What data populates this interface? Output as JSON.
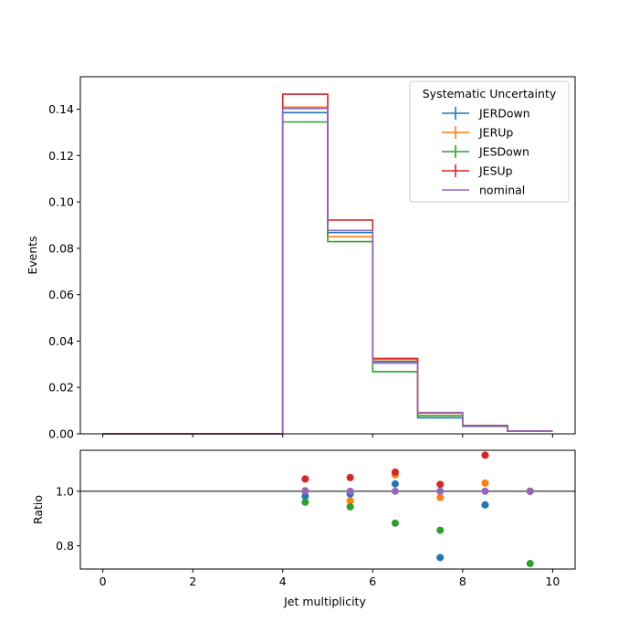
{
  "chart_data": [
    {
      "type": "step-histogram",
      "xlabel": "",
      "ylabel": "Events",
      "xlim": [
        -0.5,
        10.5
      ],
      "ylim": [
        0,
        0.154
      ],
      "xticks": [
        0,
        2,
        4,
        6,
        8,
        10
      ],
      "yticks": [
        0.0,
        0.02,
        0.04,
        0.06,
        0.08,
        0.1,
        0.12,
        0.14
      ],
      "ytick_labels": [
        "0.00",
        "0.02",
        "0.04",
        "0.06",
        "0.08",
        "0.10",
        "0.12",
        "0.14"
      ],
      "bin_edges": [
        0,
        1,
        2,
        3,
        4,
        5,
        6,
        7,
        8,
        9,
        10
      ],
      "legend": {
        "title": "Systematic Uncertainty",
        "loc": "upper right"
      },
      "grid": false,
      "series": [
        {
          "name": "JERDown",
          "color": "#1f77b4",
          "values": [
            0,
            0,
            0,
            0,
            0.1385,
            0.0868,
            0.0312,
            0.0069,
            0.0032,
            0.0012
          ]
        },
        {
          "name": "JERUp",
          "color": "#ff7f0e",
          "values": [
            0,
            0,
            0,
            0,
            0.1409,
            0.085,
            0.032,
            0.0089,
            0.0035,
            0.0012
          ]
        },
        {
          "name": "JESDown",
          "color": "#2ca02c",
          "values": [
            0,
            0,
            0,
            0,
            0.1345,
            0.0829,
            0.0268,
            0.0078,
            0.0033,
            0.0012
          ]
        },
        {
          "name": "JESUp",
          "color": "#d62728",
          "values": [
            0,
            0,
            0,
            0,
            0.1465,
            0.0922,
            0.0325,
            0.0092,
            0.0036,
            0.0012
          ]
        },
        {
          "name": "nominal",
          "color": "#9467bd",
          "values": [
            0,
            0,
            0,
            0,
            0.1403,
            0.0877,
            0.0305,
            0.0091,
            0.0034,
            0.0012
          ]
        }
      ]
    },
    {
      "type": "scatter",
      "xlabel": "Jet multiplicity",
      "ylabel": "Ratio",
      "xlim": [
        -0.5,
        10.5
      ],
      "ylim": [
        0.715,
        1.15
      ],
      "xticks": [
        0,
        2,
        4,
        6,
        8,
        10
      ],
      "yticks": [
        0.8,
        1.0
      ],
      "ytick_labels": [
        "0.8",
        "1.0"
      ],
      "reference_line": 1.0,
      "x": [
        4.5,
        5.5,
        6.5,
        7.5,
        8.5,
        9.5
      ],
      "series": [
        {
          "name": "JERDown",
          "color": "#1f77b4",
          "values": [
            0.982,
            0.99,
            1.027,
            0.757,
            0.95,
            1.0
          ]
        },
        {
          "name": "JERUp",
          "color": "#ff7f0e",
          "values": [
            1.002,
            0.965,
            1.06,
            0.977,
            1.03,
            1.0
          ]
        },
        {
          "name": "JESDown",
          "color": "#2ca02c",
          "values": [
            0.96,
            0.943,
            0.883,
            0.857,
            null,
            0.735
          ]
        },
        {
          "name": "JESUp",
          "color": "#d62728",
          "values": [
            1.045,
            1.05,
            1.07,
            1.025,
            1.132,
            1.0
          ]
        },
        {
          "name": "nominal",
          "color": "#9467bd",
          "values": [
            1.0,
            1.0,
            1.0,
            1.0,
            1.0,
            1.0
          ]
        }
      ]
    }
  ]
}
